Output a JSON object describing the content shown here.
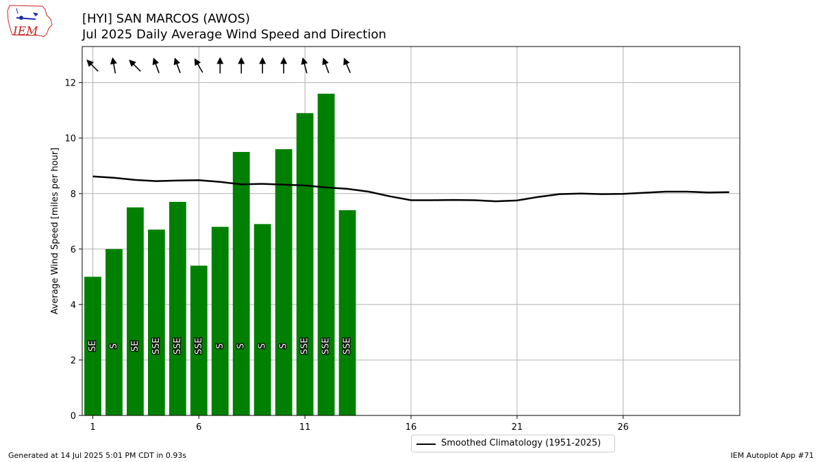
{
  "header": {
    "title": "[HYI] SAN MARCOS (AWOS)",
    "subtitle": "Jul 2025 Daily Average Wind Speed and Direction"
  },
  "logo": {
    "text": "IEM",
    "icon": "iem-logo"
  },
  "footer": {
    "generated": "Generated at 14 Jul 2025 5:01 PM CDT in 0.93s",
    "app": "IEM Autoplot App #71"
  },
  "colors": {
    "bar": "#008000",
    "climo": "#000000",
    "grid": "#b0b0b0",
    "logo": "#cc2222"
  },
  "chart_data": {
    "type": "bar",
    "ylabel": "Average Wind Speed [miles per hour]",
    "xlabel": "",
    "xlim": [
      0.5,
      31.5
    ],
    "ylim": [
      0,
      13.3
    ],
    "xticks": [
      1,
      6,
      11,
      16,
      21,
      26
    ],
    "yticks": [
      0,
      2,
      4,
      6,
      8,
      10,
      12
    ],
    "grid": true,
    "legend_position": "bottom-center",
    "days": [
      1,
      2,
      3,
      4,
      5,
      6,
      7,
      8,
      9,
      10,
      11,
      12,
      13
    ],
    "values": [
      5.0,
      6.0,
      7.5,
      6.7,
      7.7,
      5.4,
      6.8,
      9.5,
      6.9,
      9.6,
      10.9,
      11.6,
      7.4
    ],
    "direction_labels": [
      "SE",
      "S",
      "SE",
      "SSE",
      "SSE",
      "SSE",
      "S",
      "S",
      "S",
      "S",
      "SSE",
      "SSE",
      "SSE"
    ],
    "direction_degrees": [
      135,
      170,
      135,
      160,
      160,
      150,
      180,
      180,
      180,
      180,
      165,
      160,
      157
    ],
    "climatology": {
      "name": "Smoothed Climatology (1951-2025)",
      "x": [
        1,
        2,
        3,
        4,
        5,
        6,
        7,
        8,
        9,
        10,
        11,
        12,
        13,
        14,
        15,
        16,
        17,
        18,
        19,
        20,
        21,
        22,
        23,
        24,
        25,
        26,
        27,
        28,
        29,
        30,
        31
      ],
      "values": [
        8.62,
        8.57,
        8.49,
        8.45,
        8.47,
        8.48,
        8.42,
        8.33,
        8.35,
        8.32,
        8.29,
        8.22,
        8.17,
        8.07,
        7.9,
        7.76,
        7.76,
        7.77,
        7.76,
        7.72,
        7.75,
        7.88,
        7.98,
        8.0,
        7.98,
        7.99,
        8.03,
        8.07,
        8.07,
        8.04,
        8.05
      ]
    }
  }
}
